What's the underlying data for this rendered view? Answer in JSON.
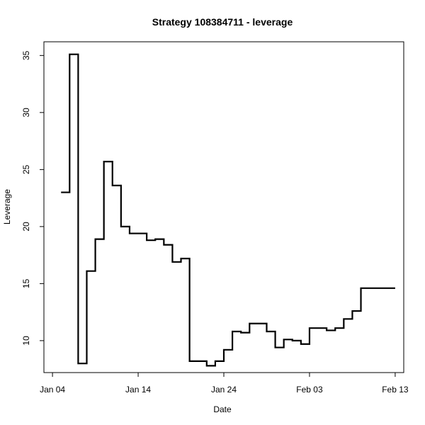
{
  "chart_data": {
    "type": "line",
    "step": true,
    "title": "Strategy 108384711 - leverage",
    "xlabel": "Date",
    "ylabel": "Leverage",
    "x_ticks": [
      {
        "date": "2025-01-04",
        "label": "Jan 04"
      },
      {
        "date": "2025-01-14",
        "label": "Jan 14"
      },
      {
        "date": "2025-01-24",
        "label": "Jan 24"
      },
      {
        "date": "2025-02-03",
        "label": "Feb 03"
      },
      {
        "date": "2025-02-13",
        "label": "Feb 13"
      }
    ],
    "y_ticks": [
      10,
      15,
      20,
      25,
      30,
      35
    ],
    "xlim": [
      "2025-01-03",
      "2025-02-14"
    ],
    "ylim": [
      7.2,
      36.2
    ],
    "grid": false,
    "series": [
      {
        "x": [
          "2025-01-05",
          "2025-01-06",
          "2025-01-07",
          "2025-01-08",
          "2025-01-09",
          "2025-01-10",
          "2025-01-11",
          "2025-01-12",
          "2025-01-13",
          "2025-01-14",
          "2025-01-15",
          "2025-01-16",
          "2025-01-17",
          "2025-01-18",
          "2025-01-19",
          "2025-01-20",
          "2025-01-21",
          "2025-01-22",
          "2025-01-23",
          "2025-01-24",
          "2025-01-25",
          "2025-01-26",
          "2025-01-27",
          "2025-01-28",
          "2025-01-29",
          "2025-01-30",
          "2025-01-31",
          "2025-02-01",
          "2025-02-02",
          "2025-02-03",
          "2025-02-04",
          "2025-02-05",
          "2025-02-06",
          "2025-02-07",
          "2025-02-08",
          "2025-02-09",
          "2025-02-10",
          "2025-02-11",
          "2025-02-12",
          "2025-02-13"
        ],
        "y": [
          23.0,
          35.1,
          8.0,
          16.1,
          18.9,
          25.7,
          23.6,
          20.0,
          19.4,
          19.4,
          18.8,
          18.9,
          18.4,
          16.9,
          17.2,
          8.2,
          8.2,
          7.8,
          8.2,
          9.2,
          10.8,
          10.7,
          11.5,
          11.5,
          10.8,
          9.4,
          10.1,
          10.0,
          9.7,
          11.1,
          11.1,
          10.9,
          11.1,
          11.9,
          12.6,
          14.6,
          14.6,
          14.6,
          14.6,
          14.6
        ]
      }
    ]
  }
}
